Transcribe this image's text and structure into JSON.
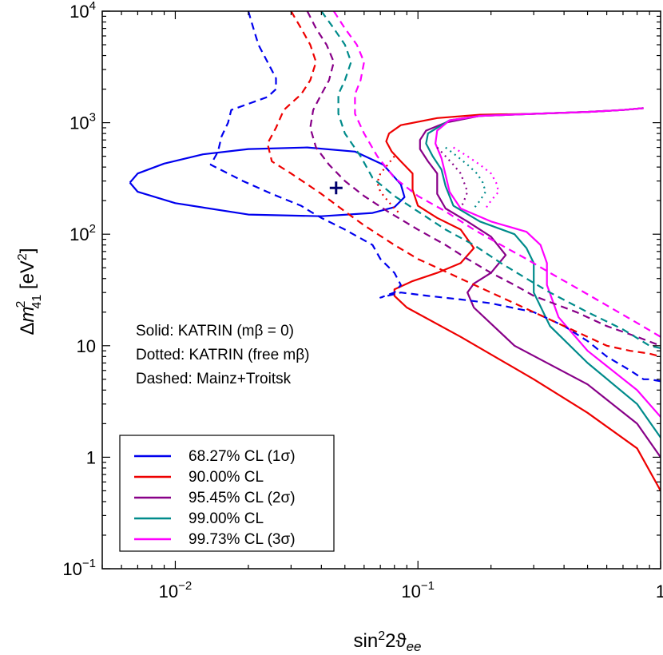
{
  "chart_data": {
    "type": "line",
    "title": "",
    "xlabel": "sin²2ϑee",
    "ylabel": "Δm²41 [eV²]",
    "x_scale": "log",
    "y_scale": "log",
    "xlim": [
      0.005,
      1
    ],
    "ylim": [
      0.1,
      10000
    ],
    "x_ticks": [
      {
        "value": 0.01,
        "base": "10",
        "exp": "−2",
        "text": ""
      },
      {
        "value": 0.1,
        "base": "10",
        "exp": "−1",
        "text": ""
      },
      {
        "value": 1,
        "base": "",
        "exp": "",
        "text": "1"
      }
    ],
    "y_ticks": [
      {
        "value": 0.1,
        "base": "10",
        "exp": "−1",
        "text": ""
      },
      {
        "value": 1,
        "base": "",
        "exp": "",
        "text": "1"
      },
      {
        "value": 10,
        "base": "",
        "exp": "",
        "text": "10"
      },
      {
        "value": 100,
        "base": "10",
        "exp": "2",
        "text": ""
      },
      {
        "value": 1000,
        "base": "10",
        "exp": "3",
        "text": ""
      },
      {
        "value": 10000,
        "base": "10",
        "exp": "4",
        "text": ""
      }
    ],
    "annotations": [
      "Solid: KATRIN (mβ = 0)",
      "Dotted: KATRIN (free mβ)",
      "Dashed: Mainz+Troitsk"
    ],
    "best_fit": {
      "x": 0.046,
      "y": 260,
      "marker": "+"
    },
    "legend": {
      "position": "bottom-left",
      "entries": [
        {
          "label": "68.27% CL (1σ)",
          "color": "#0000ee"
        },
        {
          "label": "90.00% CL",
          "color": "#ee0000"
        },
        {
          "label": "95.45% CL (2σ)",
          "color": "#880088"
        },
        {
          "label": "99.00% CL",
          "color": "#008b8b"
        },
        {
          "label": "99.73% CL (3σ)",
          "color": "#ff00ff"
        }
      ]
    },
    "series": [
      {
        "name": "68.27% CL (1σ)",
        "group": "solid",
        "color": "#0000ee",
        "style": "solid",
        "x": [
          0.0065,
          0.007,
          0.009,
          0.013,
          0.02,
          0.035,
          0.055,
          0.072,
          0.085,
          0.088,
          0.08,
          0.065,
          0.04,
          0.02,
          0.01,
          0.007,
          0.0065
        ],
        "y": [
          290,
          350,
          430,
          520,
          580,
          600,
          550,
          420,
          280,
          215,
          175,
          155,
          145,
          150,
          190,
          240,
          290
        ]
      },
      {
        "name": "90.00% CL",
        "group": "solid",
        "color": "#ee0000",
        "style": "solid",
        "x": [
          0.85,
          0.7,
          0.5,
          0.3,
          0.18,
          0.12,
          0.085,
          0.076,
          0.074,
          0.078,
          0.085,
          0.095,
          0.095,
          0.1,
          0.12,
          0.15,
          0.17,
          0.15,
          0.12,
          0.095,
          0.08,
          0.08,
          0.09,
          0.15,
          0.3,
          0.5,
          0.8,
          1.0
        ],
        "y": [
          1350,
          1300,
          1250,
          1200,
          1180,
          1100,
          950,
          800,
          680,
          550,
          450,
          350,
          250,
          180,
          140,
          110,
          75,
          55,
          45,
          38,
          32,
          28,
          22,
          12,
          5,
          2.5,
          1.2,
          0.5
        ]
      },
      {
        "name": "95.45% CL (2σ)",
        "group": "solid",
        "color": "#880088",
        "style": "solid",
        "x": [
          0.85,
          0.7,
          0.5,
          0.3,
          0.18,
          0.13,
          0.108,
          0.102,
          0.102,
          0.11,
          0.12,
          0.12,
          0.13,
          0.16,
          0.2,
          0.23,
          0.2,
          0.17,
          0.16,
          0.17,
          0.25,
          0.5,
          0.8,
          1.0
        ],
        "y": [
          1350,
          1300,
          1250,
          1200,
          1150,
          1000,
          850,
          700,
          580,
          450,
          350,
          230,
          170,
          130,
          95,
          65,
          45,
          36,
          30,
          22,
          10,
          4.5,
          2.0,
          1.0
        ]
      },
      {
        "name": "99.00% CL",
        "group": "solid",
        "color": "#008b8b",
        "style": "solid",
        "x": [
          0.85,
          0.7,
          0.5,
          0.3,
          0.18,
          0.135,
          0.11,
          0.108,
          0.115,
          0.125,
          0.13,
          0.14,
          0.18,
          0.25,
          0.28,
          0.3,
          0.3,
          0.3,
          0.35,
          0.5,
          0.8,
          1.0
        ],
        "y": [
          1350,
          1300,
          1250,
          1200,
          1150,
          1050,
          800,
          650,
          500,
          380,
          270,
          180,
          130,
          100,
          75,
          55,
          42,
          30,
          15,
          7,
          3,
          1.5
        ]
      },
      {
        "name": "99.73% CL (3σ)",
        "group": "solid",
        "color": "#ff00ff",
        "style": "solid",
        "x": [
          0.85,
          0.7,
          0.5,
          0.3,
          0.18,
          0.135,
          0.12,
          0.118,
          0.125,
          0.13,
          0.135,
          0.15,
          0.2,
          0.28,
          0.32,
          0.34,
          0.34,
          0.38,
          0.5,
          0.8,
          1.0
        ],
        "y": [
          1350,
          1300,
          1250,
          1200,
          1150,
          1050,
          850,
          650,
          480,
          340,
          240,
          170,
          130,
          105,
          80,
          55,
          35,
          18,
          9,
          4,
          2.3
        ]
      },
      {
        "name": "90.00% CL",
        "group": "dotted",
        "color": "#ee0000",
        "style": "dotted",
        "x": [
          0.08,
          0.075,
          0.07,
          0.068,
          0.07,
          0.075,
          0.08,
          0.085
        ],
        "y": [
          500,
          420,
          350,
          290,
          240,
          200,
          170,
          150
        ]
      },
      {
        "name": "95.45% CL (2σ)",
        "group": "dotted",
        "color": "#880088",
        "style": "dotted",
        "x": [
          0.12,
          0.13,
          0.14,
          0.15,
          0.155,
          0.16,
          0.155,
          0.15
        ],
        "y": [
          600,
          500,
          420,
          350,
          290,
          240,
          200,
          170
        ]
      },
      {
        "name": "99.00% CL",
        "group": "dotted",
        "color": "#008b8b",
        "style": "dotted",
        "x": [
          0.13,
          0.145,
          0.16,
          0.175,
          0.185,
          0.19,
          0.18,
          0.17
        ],
        "y": [
          600,
          500,
          420,
          350,
          290,
          240,
          200,
          170
        ]
      },
      {
        "name": "99.73% CL (3σ)",
        "group": "dotted",
        "color": "#ff00ff",
        "style": "dotted",
        "x": [
          0.14,
          0.16,
          0.18,
          0.2,
          0.21,
          0.215,
          0.2,
          0.19
        ],
        "y": [
          600,
          500,
          420,
          350,
          290,
          240,
          200,
          170
        ]
      },
      {
        "name": "68.27% CL (1σ)",
        "group": "dashed",
        "color": "#0000ee",
        "style": "dashed",
        "x": [
          0.02,
          0.021,
          0.022,
          0.024,
          0.026,
          0.026,
          0.024,
          0.017,
          0.0165,
          0.0155,
          0.015,
          0.014,
          0.019,
          0.025,
          0.033,
          0.036,
          0.04,
          0.05,
          0.065,
          0.07,
          0.08,
          0.085,
          0.08,
          0.07,
          0.085,
          0.11,
          0.15,
          0.2,
          0.3,
          0.4,
          0.5,
          0.6,
          0.75,
          0.85,
          0.9,
          1.0
        ],
        "y": [
          10000,
          7000,
          5000,
          3500,
          2500,
          2000,
          1700,
          1300,
          1000,
          750,
          550,
          420,
          300,
          230,
          180,
          160,
          140,
          110,
          80,
          60,
          45,
          35,
          30,
          27,
          30,
          28,
          26,
          24,
          20,
          15,
          11,
          8,
          6,
          5,
          5,
          4.8
        ]
      },
      {
        "name": "90.00% CL",
        "group": "dashed",
        "color": "#ee0000",
        "style": "dashed",
        "x": [
          0.03,
          0.033,
          0.036,
          0.038,
          0.036,
          0.033,
          0.028,
          0.026,
          0.024,
          0.025,
          0.03,
          0.035,
          0.04,
          0.05,
          0.06,
          0.08,
          0.1,
          0.12,
          0.15,
          0.2,
          0.3,
          0.4,
          0.5,
          0.6,
          0.75,
          0.9,
          1.0
        ],
        "y": [
          10000,
          7000,
          5000,
          3500,
          2400,
          1800,
          1300,
          900,
          650,
          450,
          350,
          280,
          230,
          160,
          120,
          80,
          60,
          50,
          40,
          30,
          20,
          15,
          12,
          10,
          9,
          8.5,
          8
        ]
      },
      {
        "name": "95.45% CL (2σ)",
        "group": "dashed",
        "color": "#880088",
        "style": "dashed",
        "x": [
          0.035,
          0.038,
          0.042,
          0.045,
          0.043,
          0.04,
          0.037,
          0.036,
          0.038,
          0.043,
          0.05,
          0.06,
          0.075,
          0.1,
          0.13,
          0.16,
          0.2,
          0.25,
          0.3,
          0.45,
          0.6,
          0.8,
          1.0
        ],
        "y": [
          10000,
          7000,
          5000,
          3500,
          2400,
          1800,
          1300,
          900,
          600,
          420,
          300,
          220,
          160,
          110,
          80,
          60,
          45,
          35,
          28,
          20,
          15,
          12,
          10
        ]
      },
      {
        "name": "99.00% CL",
        "group": "dashed",
        "color": "#008b8b",
        "style": "dashed",
        "x": [
          0.04,
          0.045,
          0.05,
          0.053,
          0.05,
          0.047,
          0.047,
          0.05,
          0.058,
          0.065,
          0.08,
          0.1,
          0.13,
          0.17,
          0.22,
          0.28,
          0.35,
          0.5,
          0.7,
          0.9,
          1.0
        ],
        "y": [
          10000,
          7000,
          5000,
          3500,
          2400,
          1800,
          1200,
          800,
          500,
          320,
          220,
          160,
          110,
          80,
          55,
          40,
          30,
          20,
          14,
          10,
          9.5
        ]
      },
      {
        "name": "99.73% CL (3σ)",
        "group": "dashed",
        "color": "#ff00ff",
        "style": "dashed",
        "x": [
          0.045,
          0.05,
          0.056,
          0.06,
          0.058,
          0.055,
          0.055,
          0.06,
          0.068,
          0.08,
          0.1,
          0.13,
          0.17,
          0.22,
          0.28,
          0.35,
          0.45,
          0.6,
          0.8,
          1.0
        ],
        "y": [
          10000,
          7000,
          5000,
          3500,
          2400,
          1800,
          1200,
          800,
          500,
          320,
          220,
          160,
          110,
          80,
          60,
          45,
          33,
          23,
          16,
          12
        ]
      }
    ]
  }
}
